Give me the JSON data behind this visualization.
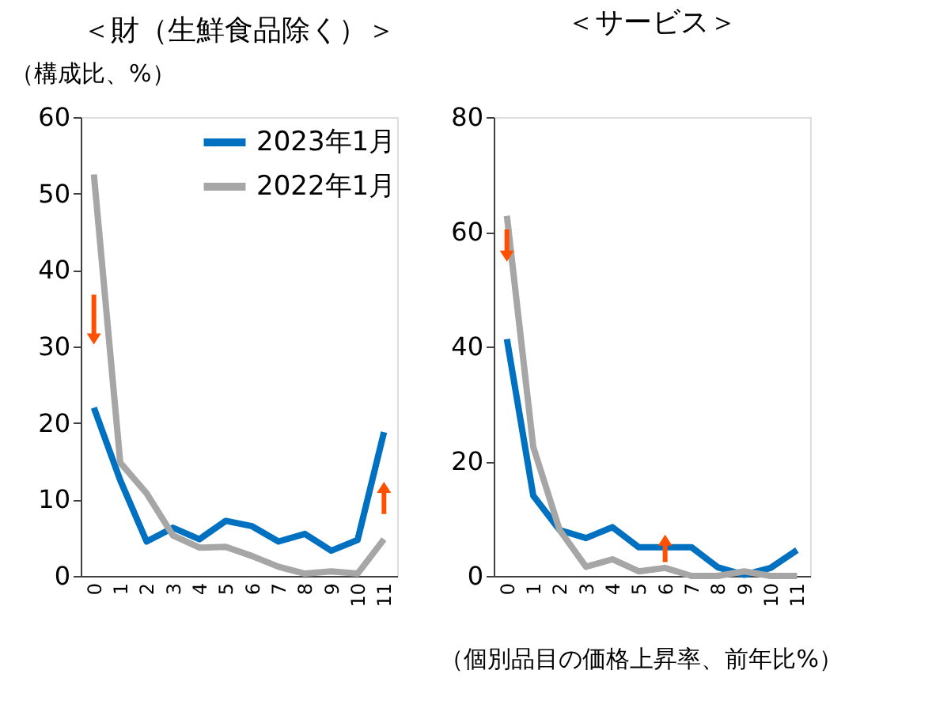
{
  "chart_data": [
    {
      "type": "line",
      "title": "＜財（生鮮食品除く）＞",
      "ylabel": "（構成比、%）",
      "categories": [
        "0",
        "1",
        "2",
        "3",
        "4",
        "5",
        "6",
        "7",
        "8",
        "9",
        "10",
        "11"
      ],
      "series": [
        {
          "name": "2023年1月",
          "color": "#0070c0",
          "values": [
            22,
            12.5,
            4.5,
            6.3,
            4.8,
            7.2,
            6.5,
            4.5,
            5.5,
            3.3,
            4.7,
            18.8
          ]
        },
        {
          "name": "2022年1月",
          "color": "#a6a6a6",
          "values": [
            52.5,
            14.8,
            10.8,
            5.3,
            3.7,
            3.8,
            2.6,
            1.2,
            0.3,
            0.6,
            0.3,
            4.8
          ]
        }
      ],
      "ylim": [
        0,
        60
      ],
      "yticks": [
        0,
        10,
        20,
        30,
        40,
        50,
        60
      ],
      "grid": false,
      "legend": "top right",
      "marker": "none",
      "line_style": "solid"
    },
    {
      "type": "line",
      "title": "＜サービス＞",
      "xlabel": "（個別品目の価格上昇率、前年比%）",
      "categories": [
        "0",
        "1",
        "2",
        "3",
        "4",
        "5",
        "6",
        "7",
        "8",
        "9",
        "10",
        "11"
      ],
      "series": [
        {
          "color": "#0070c0",
          "values": [
            41.3,
            14,
            8,
            6.6,
            8.5,
            5,
            5,
            5,
            1.5,
            0.2,
            1.4,
            4.5
          ]
        },
        {
          "color": "#a6a6a6",
          "values": [
            62.8,
            22.5,
            8,
            1.6,
            2.9,
            0.8,
            1.4,
            0,
            0,
            0.8,
            0,
            0
          ]
        }
      ],
      "ylim": [
        0,
        80
      ],
      "yticks": [
        0,
        20,
        40,
        60,
        80
      ],
      "grid": false,
      "marker": "none",
      "line_style": "solid"
    }
  ]
}
